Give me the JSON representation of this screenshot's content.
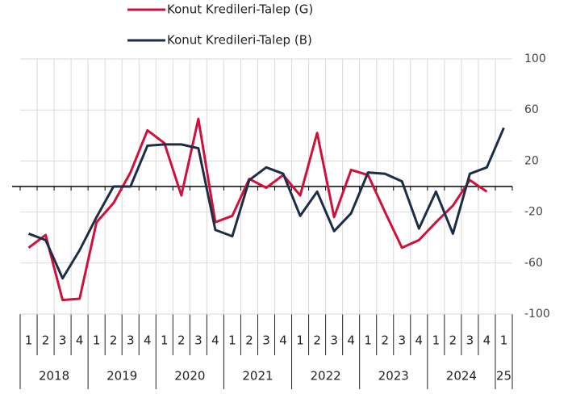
{
  "chart_data": {
    "type": "line",
    "categories": [
      "1",
      "2",
      "3",
      "4",
      "1",
      "2",
      "3",
      "4",
      "1",
      "2",
      "3",
      "4",
      "1",
      "2",
      "3",
      "4",
      "1",
      "2",
      "3",
      "4",
      "1",
      "2",
      "3",
      "4",
      "1",
      "2",
      "3",
      "4",
      "1"
    ],
    "groups": [
      "2018",
      "2019",
      "2020",
      "2021",
      "2022",
      "2023",
      "2024",
      "25"
    ],
    "series": [
      {
        "name": "Konut Kredileri-Talep (G)",
        "color": "#d0103a",
        "values": [
          -48,
          -38,
          -89,
          -88,
          -28,
          -13,
          11,
          44,
          34,
          -7,
          53,
          -28,
          -23,
          6,
          -1,
          9,
          -7,
          42,
          -24,
          13,
          9,
          -20,
          -48,
          -42,
          -28,
          -15,
          5,
          -4,
          null
        ]
      },
      {
        "name": "Konut Kredileri-Talep (B)",
        "color": "#1c2e45",
        "values": [
          -37,
          -42,
          -72,
          -50,
          -24,
          0,
          0,
          32,
          33,
          33,
          30,
          -34,
          -39,
          5,
          15,
          10,
          -23,
          -4,
          -35,
          -21,
          11,
          10,
          4,
          -33,
          -4,
          -37,
          10,
          15,
          46
        ]
      }
    ],
    "ylim": [
      -100,
      100
    ],
    "yticks": [
      100,
      60,
      20,
      -20,
      -60,
      -100
    ],
    "grid": true,
    "legend": "top"
  }
}
